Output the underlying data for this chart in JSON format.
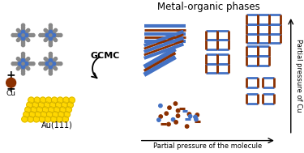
{
  "title": "Metal-organic phases",
  "xlabel": "Partial pressure of the molecule",
  "ylabel": "Partial pressure of Cu",
  "gcmc_label": "GCMC",
  "cu_label": "Cu",
  "au_label": "Au(111)",
  "blue_color": "#4472C4",
  "red_color": "#8B3000",
  "gold_color": "#FFD700",
  "gold_dark": "#C8A800",
  "bg_color": "#ffffff",
  "porphyrin_blue": "#4472C4",
  "porphyrin_gray": "#888888",
  "figsize": [
    3.75,
    1.89
  ],
  "dpi": 100
}
